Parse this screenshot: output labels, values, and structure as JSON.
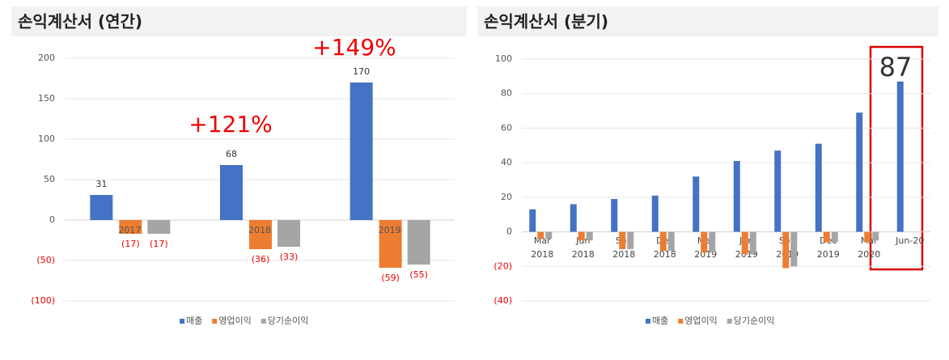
{
  "chart_data": [
    {
      "type": "bar",
      "title": "손익계산서 (연간)",
      "categories": [
        "2017",
        "2018",
        "2019"
      ],
      "series": [
        {
          "name": "매출",
          "color": "#4472c4",
          "values": [
            31,
            68,
            170
          ]
        },
        {
          "name": "영업이익",
          "color": "#ed7d31",
          "values": [
            -17,
            -36,
            -59
          ],
          "value_labels": [
            "(17)",
            "(36)",
            "(59)"
          ]
        },
        {
          "name": "당기순이익",
          "color": "#a5a5a5",
          "values": [
            -17,
            -33,
            -55
          ],
          "value_labels": [
            "(17)",
            "(33)",
            "(55)"
          ]
        }
      ],
      "ylim": [
        -100,
        200
      ],
      "yticks": [
        200,
        150,
        100,
        50,
        0,
        {
          "value": -50,
          "label": "(50)"
        },
        {
          "value": -100,
          "label": "(100)"
        }
      ],
      "grid": true,
      "annotations": [
        "+121%",
        "+149%"
      ]
    },
    {
      "type": "bar",
      "title": "손익계산서 (분기)",
      "categories": [
        "Mar 2018",
        "Jun 2018",
        "Sep 2018",
        "Dec 2018",
        "Mar 2019",
        "Jun 2019",
        "Sep 2019",
        "Dec 2019",
        "Mar 2020",
        "Jun-20"
      ],
      "series": [
        {
          "name": "매출",
          "color": "#4472c4",
          "values": [
            13,
            16,
            19,
            21,
            32,
            41,
            47,
            51,
            69,
            87
          ]
        },
        {
          "name": "영업이익",
          "color": "#ed7d31",
          "values": [
            -4,
            -5,
            -10,
            -11,
            -12,
            -13,
            -21,
            -6,
            -6,
            null
          ]
        },
        {
          "name": "당기순이익",
          "color": "#a5a5a5",
          "values": [
            -4,
            -5,
            -10,
            -11,
            -12,
            -13,
            -20,
            -6,
            -5,
            null
          ]
        }
      ],
      "ylim": [
        -40,
        100
      ],
      "yticks": [
        100,
        80,
        60,
        40,
        20,
        0,
        {
          "value": -20,
          "label": "(20)"
        },
        {
          "value": -40,
          "label": "(40)"
        }
      ],
      "grid": true,
      "annotations": [
        "87"
      ]
    }
  ]
}
